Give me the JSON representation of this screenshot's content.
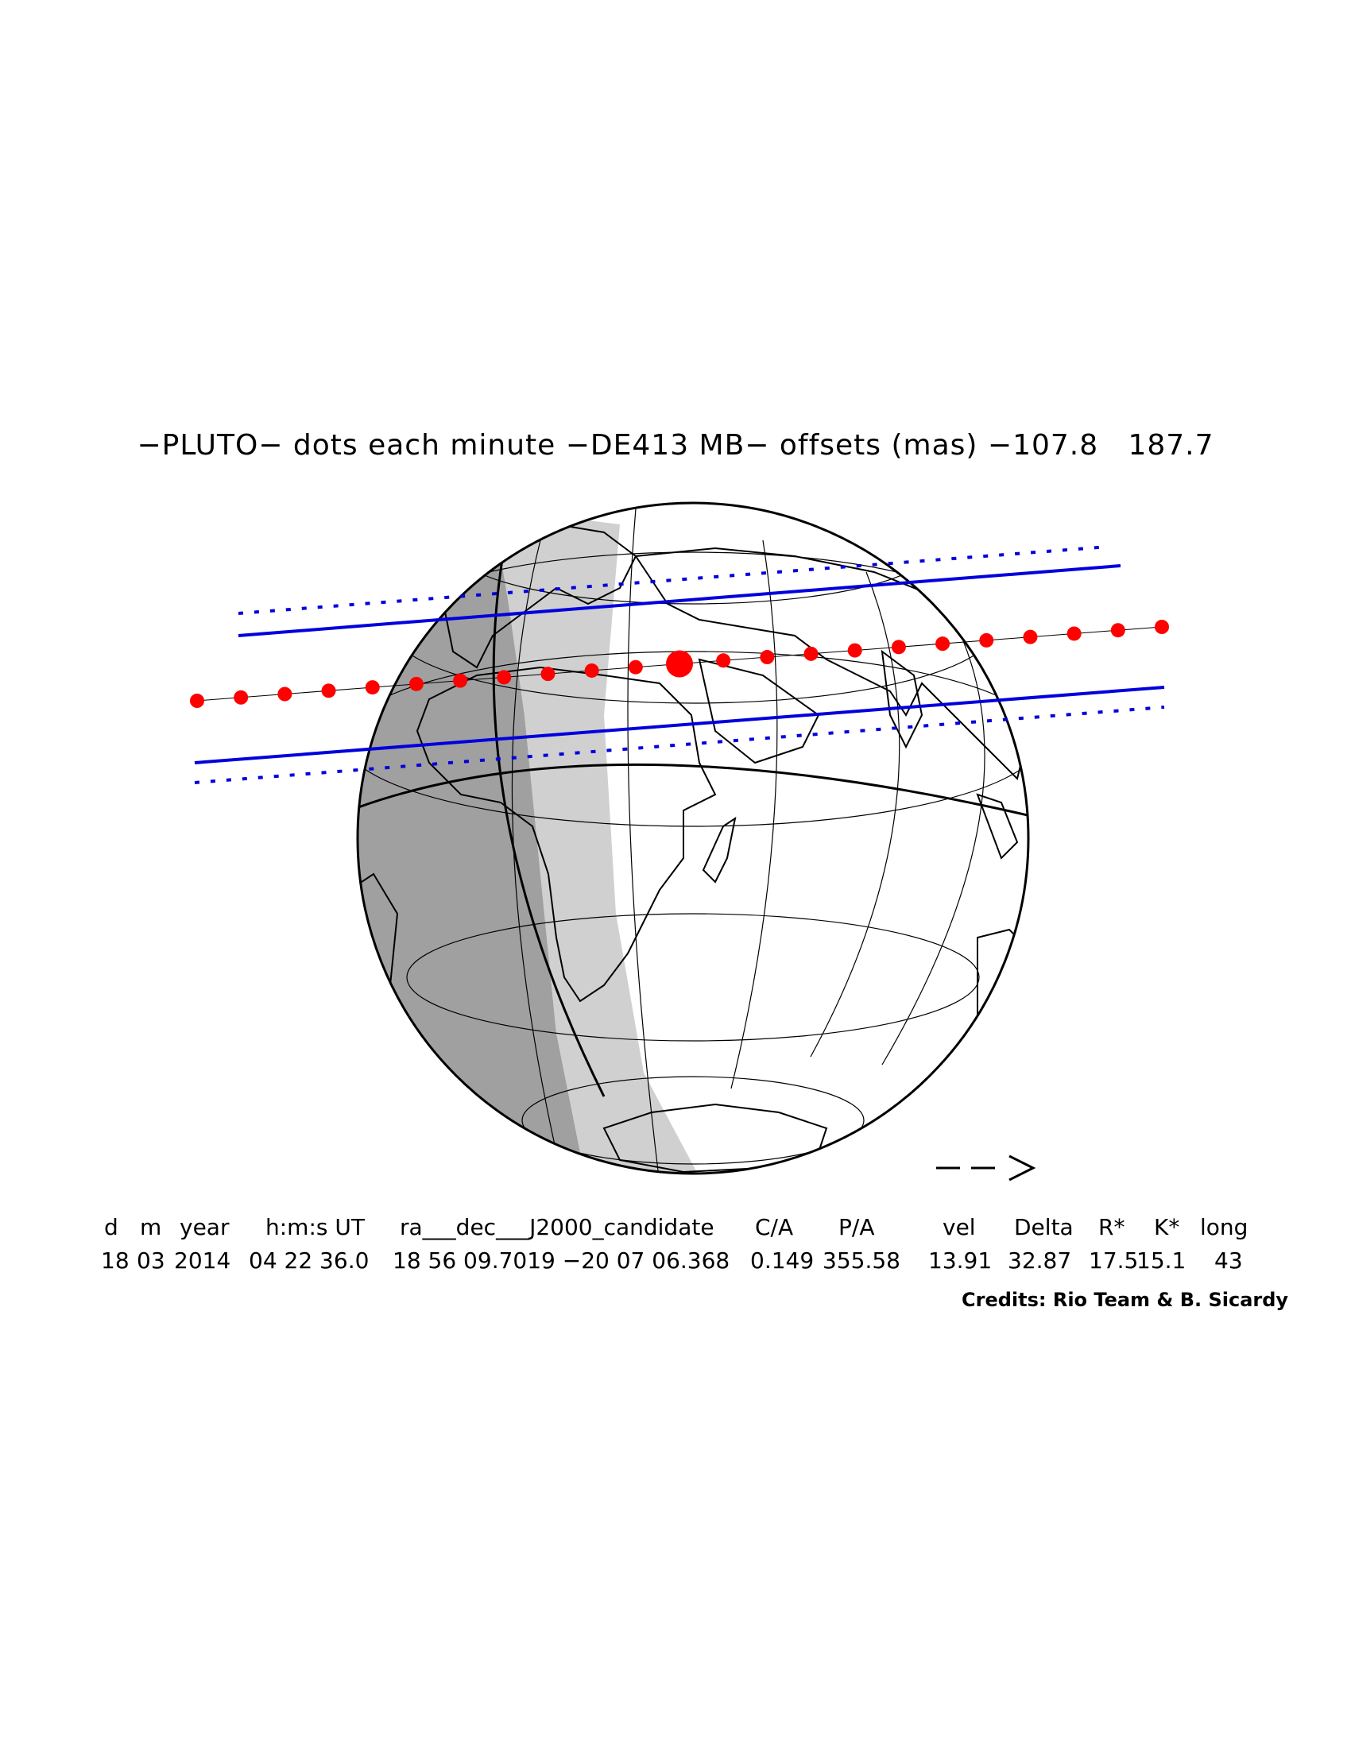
{
  "title": "−PLUTO− dots each minute −DE413 MB− offsets (mas) −107.8   187.7",
  "table": {
    "headers": [
      "d",
      "m",
      "year",
      "h:m:s UT",
      "ra___dec___J2000_candidate",
      "C/A",
      "P/A",
      "vel",
      "Delta",
      "R*",
      "K*",
      "long"
    ],
    "values": [
      "18",
      "03",
      "2014",
      "04 22 36.0",
      "18 56 09.7019 −20 07 06.368",
      "0.149",
      "355.58",
      "13.91",
      "32.87",
      "17.5",
      "15.1",
      "43"
    ]
  },
  "credits": "Credits: Rio Team & B. Sicardy",
  "direction_arrow": "−−>",
  "colors": {
    "track": "#ff0000",
    "shadow_limits": "#0000dd",
    "night": "#a0a0a0",
    "twilight": "#d0d0d0",
    "day": "#ffffff",
    "coastline": "#000000"
  },
  "track": {
    "dots_count": 23,
    "closest_approach_index": 11,
    "interval": "1 minute"
  }
}
